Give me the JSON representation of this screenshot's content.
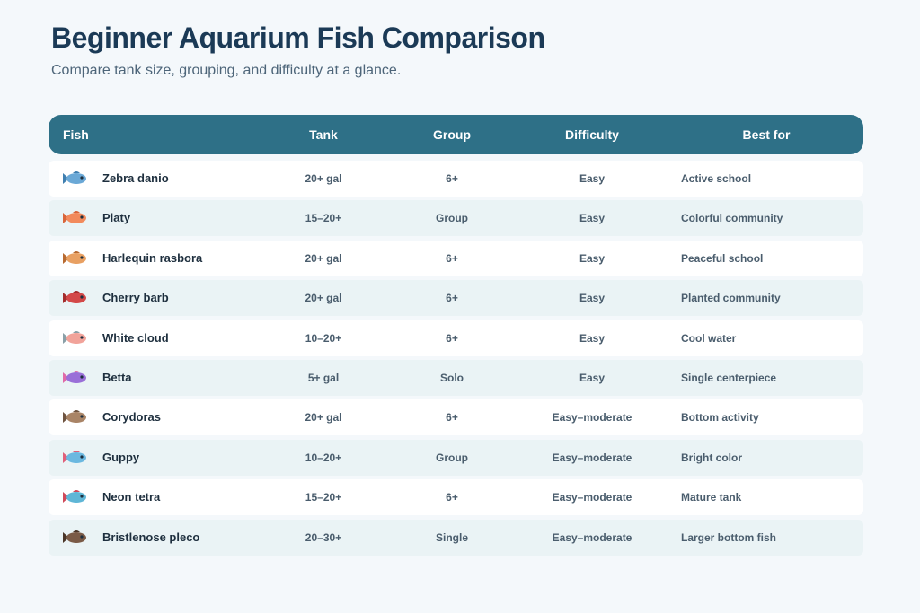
{
  "header": {
    "title": "Beginner Aquarium Fish Comparison",
    "subtitle": "Compare tank size, grouping, and difficulty at a glance."
  },
  "table": {
    "columns": [
      "Fish",
      "Tank",
      "Group",
      "Difficulty",
      "Best for"
    ],
    "rows": [
      [
        "Zebra danio",
        "20+ gal",
        "6+",
        "Easy",
        "Active school"
      ],
      [
        "Platy",
        "15–20+",
        "Group",
        "Easy",
        "Colorful community"
      ],
      [
        "Harlequin rasbora",
        "20+ gal",
        "6+",
        "Easy",
        "Peaceful school"
      ],
      [
        "Cherry barb",
        "20+ gal",
        "6+",
        "Easy",
        "Planted community"
      ],
      [
        "White cloud",
        "10–20+",
        "6+",
        "Easy",
        "Cool water"
      ],
      [
        "Betta",
        "5+ gal",
        "Solo",
        "Easy",
        "Single centerpiece"
      ],
      [
        "Corydoras",
        "20+ gal",
        "6+",
        "Easy–moderate",
        "Bottom activity"
      ],
      [
        "Guppy",
        "10–20+",
        "Group",
        "Easy–moderate",
        "Bright color"
      ],
      [
        "Neon tetra",
        "15–20+",
        "6+",
        "Easy–moderate",
        "Mature tank"
      ],
      [
        "Bristlenose pleco",
        "20–30+",
        "Single",
        "Easy–moderate",
        "Larger bottom fish"
      ]
    ]
  }
}
